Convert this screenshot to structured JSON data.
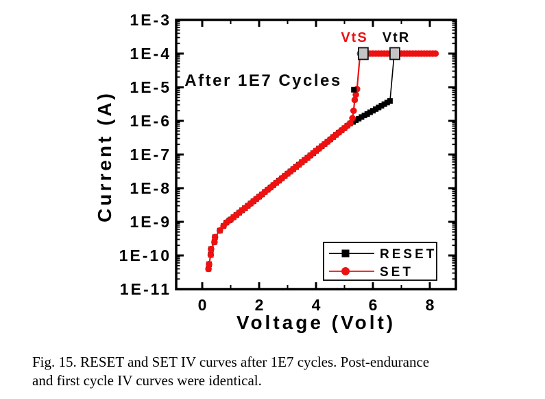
{
  "figure": {
    "x_axis": {
      "title": "Voltage (Volt)",
      "major_ticks": [
        0,
        2,
        4,
        6,
        8
      ],
      "minor_ticks": [
        1,
        3,
        5,
        7
      ],
      "range": [
        -0.92,
        8.92
      ]
    },
    "y_axis": {
      "title": "Current (A)",
      "tick_labels": [
        "1E-3",
        "1E-4",
        "1E-5",
        "1E-6",
        "1E-7",
        "1E-8",
        "1E-9",
        "1E-10",
        "1E-11"
      ],
      "tick_exponents": [
        -3,
        -4,
        -5,
        -6,
        -7,
        -8,
        -9,
        -10,
        -11
      ],
      "range_exponents": [
        -11,
        -3
      ]
    },
    "annotations": {
      "cycles_note": {
        "text": "After 1E7 Cycles",
        "color": "#0a0a0a",
        "v": -0.62,
        "i": 1.6e-05
      },
      "vts": {
        "text": "VtS",
        "color": "#ee1111",
        "v": 5.35,
        "i": 0.00032
      },
      "vtr": {
        "text": "VtR",
        "color": "#0a0a0a",
        "v": 6.82,
        "i": 0.00032
      }
    },
    "legend": {
      "items": [
        {
          "label": "RESET",
          "color": "#000000",
          "marker": "square"
        },
        {
          "label": "SET",
          "color": "#ee1111",
          "marker": "circle"
        }
      ]
    }
  },
  "chart_data": {
    "type": "line",
    "xlabel": "Voltage (Volt)",
    "ylabel": "Current (A)",
    "x_range": [
      -0.92,
      8.92
    ],
    "y_log_range": [
      -11,
      -3
    ],
    "y_scale": "log",
    "compliance_current": 0.0001,
    "series": [
      {
        "name": "RESET",
        "color": "#000000",
        "marker": "square",
        "points": [
          [
            0.22,
            4e-11
          ],
          [
            0.24,
            5.5e-11
          ],
          [
            0.3,
            1.05e-10
          ],
          [
            0.31,
            1.55e-10
          ],
          [
            0.43,
            2.5e-10
          ],
          [
            0.45,
            3.5e-10
          ],
          [
            0.62,
            5.5e-10
          ],
          [
            0.75,
            7.5e-10
          ],
          [
            0.85,
            9.5e-10
          ],
          [
            0.95,
            1.1e-09
          ],
          [
            1.0,
            1.17e-09
          ],
          [
            1.1,
            1.37e-09
          ],
          [
            1.2,
            1.6e-09
          ],
          [
            1.3,
            1.87e-09
          ],
          [
            1.4,
            2.2e-09
          ],
          [
            1.5,
            2.56e-09
          ],
          [
            1.6,
            3e-09
          ],
          [
            1.7,
            3.5e-09
          ],
          [
            1.8,
            4.1e-09
          ],
          [
            1.9,
            4.8e-09
          ],
          [
            2.0,
            5.6e-09
          ],
          [
            2.1,
            6.5e-09
          ],
          [
            2.2,
            7.7e-09
          ],
          [
            2.3,
            9e-09
          ],
          [
            2.4,
            1.05e-08
          ],
          [
            2.5,
            1.23e-08
          ],
          [
            2.6,
            1.44e-08
          ],
          [
            2.7,
            1.68e-08
          ],
          [
            2.8,
            1.96e-08
          ],
          [
            2.9,
            2.3e-08
          ],
          [
            3.0,
            2.7e-08
          ],
          [
            3.1,
            3.14e-08
          ],
          [
            3.2,
            3.67e-08
          ],
          [
            3.3,
            4.3e-08
          ],
          [
            3.4,
            5e-08
          ],
          [
            3.5,
            5.9e-08
          ],
          [
            3.6,
            6.9e-08
          ],
          [
            3.7,
            8e-08
          ],
          [
            3.8,
            9.4e-08
          ],
          [
            3.9,
            1.1e-07
          ],
          [
            4.0,
            1.29e-07
          ],
          [
            4.1,
            1.5e-07
          ],
          [
            4.2,
            1.76e-07
          ],
          [
            4.3,
            2.05e-07
          ],
          [
            4.4,
            2.4e-07
          ],
          [
            4.5,
            2.8e-07
          ],
          [
            4.6,
            3.3e-07
          ],
          [
            4.7,
            3.85e-07
          ],
          [
            4.8,
            4.5e-07
          ],
          [
            4.9,
            5.25e-07
          ],
          [
            5.0,
            6.1e-07
          ],
          [
            5.1,
            7.2e-07
          ],
          [
            5.2,
            8.4e-07
          ],
          [
            5.3,
            9.3e-07
          ],
          [
            5.4,
            1.05e-06
          ],
          [
            5.5,
            1.16e-06
          ],
          [
            5.6,
            1.3e-06
          ],
          [
            5.7,
            1.45e-06
          ],
          [
            5.8,
            1.6e-06
          ],
          [
            5.9,
            1.8e-06
          ],
          [
            6.0,
            2e-06
          ],
          [
            6.1,
            2.24e-06
          ],
          [
            6.2,
            2.5e-06
          ],
          [
            6.3,
            2.8e-06
          ],
          [
            6.4,
            3.14e-06
          ],
          [
            6.5,
            3.5e-06
          ],
          [
            6.6,
            3.9e-06
          ],
          [
            6.75,
            0.0001
          ]
        ]
      },
      {
        "name": "SET",
        "color": "#ee1111",
        "marker": "circle",
        "points": [
          [
            0.22,
            4e-11
          ],
          [
            0.24,
            5.5e-11
          ],
          [
            0.3,
            1.05e-10
          ],
          [
            0.31,
            1.55e-10
          ],
          [
            0.43,
            2.5e-10
          ],
          [
            0.45,
            3.5e-10
          ],
          [
            0.62,
            5.5e-10
          ],
          [
            0.75,
            7.5e-10
          ],
          [
            0.85,
            9.5e-10
          ],
          [
            0.95,
            1.1e-09
          ],
          [
            1.0,
            1.17e-09
          ],
          [
            1.1,
            1.37e-09
          ],
          [
            1.2,
            1.6e-09
          ],
          [
            1.3,
            1.87e-09
          ],
          [
            1.4,
            2.2e-09
          ],
          [
            1.5,
            2.56e-09
          ],
          [
            1.6,
            3e-09
          ],
          [
            1.7,
            3.5e-09
          ],
          [
            1.8,
            4.1e-09
          ],
          [
            1.9,
            4.8e-09
          ],
          [
            2.0,
            5.6e-09
          ],
          [
            2.1,
            6.5e-09
          ],
          [
            2.2,
            7.7e-09
          ],
          [
            2.3,
            9e-09
          ],
          [
            2.4,
            1.05e-08
          ],
          [
            2.5,
            1.23e-08
          ],
          [
            2.6,
            1.44e-08
          ],
          [
            2.7,
            1.68e-08
          ],
          [
            2.8,
            1.96e-08
          ],
          [
            2.9,
            2.3e-08
          ],
          [
            3.0,
            2.7e-08
          ],
          [
            3.1,
            3.14e-08
          ],
          [
            3.2,
            3.67e-08
          ],
          [
            3.3,
            4.3e-08
          ],
          [
            3.4,
            5e-08
          ],
          [
            3.5,
            5.9e-08
          ],
          [
            3.6,
            6.9e-08
          ],
          [
            3.7,
            8e-08
          ],
          [
            3.8,
            9.4e-08
          ],
          [
            3.9,
            1.1e-07
          ],
          [
            4.0,
            1.29e-07
          ],
          [
            4.1,
            1.5e-07
          ],
          [
            4.2,
            1.76e-07
          ],
          [
            4.3,
            2.05e-07
          ],
          [
            4.4,
            2.4e-07
          ],
          [
            4.5,
            2.8e-07
          ],
          [
            4.6,
            3.3e-07
          ],
          [
            4.7,
            3.85e-07
          ],
          [
            4.8,
            4.5e-07
          ],
          [
            4.9,
            5.25e-07
          ],
          [
            5.0,
            6.1e-07
          ],
          [
            5.1,
            7.2e-07
          ],
          [
            5.2,
            8.4e-07
          ],
          [
            5.28,
            1.2e-06
          ],
          [
            5.32,
            2e-06
          ],
          [
            5.36,
            4.2e-06
          ],
          [
            5.4,
            6e-06
          ],
          [
            5.44,
            8.8e-06
          ],
          [
            5.55,
            0.0001
          ],
          [
            5.6,
            0.0001
          ],
          [
            5.7,
            0.0001
          ],
          [
            5.8,
            0.0001
          ],
          [
            5.9,
            0.0001
          ],
          [
            6.0,
            0.0001
          ],
          [
            6.1,
            0.0001
          ],
          [
            6.2,
            0.0001
          ],
          [
            6.3,
            0.0001
          ],
          [
            6.4,
            0.0001
          ],
          [
            6.5,
            0.0001
          ],
          [
            6.6,
            0.0001
          ],
          [
            6.7,
            0.0001
          ],
          [
            6.8,
            0.0001
          ],
          [
            6.9,
            0.0001
          ],
          [
            7.0,
            0.0001
          ],
          [
            7.1,
            0.0001
          ],
          [
            7.2,
            0.0001
          ],
          [
            7.3,
            0.0001
          ],
          [
            7.4,
            0.0001
          ],
          [
            7.5,
            0.0001
          ],
          [
            7.6,
            0.0001
          ],
          [
            7.7,
            0.0001
          ],
          [
            7.8,
            0.0001
          ],
          [
            7.9,
            0.0001
          ],
          [
            8.0,
            0.0001
          ],
          [
            8.1,
            0.0001
          ],
          [
            8.2,
            0.0001
          ]
        ]
      }
    ],
    "threshold_markers": [
      {
        "name": "VtS",
        "v": 5.66,
        "i": 0.0001,
        "fill": "#c4c4c4",
        "border": "#111111"
      },
      {
        "name": "VtR",
        "v": 6.77,
        "i": 0.0001,
        "fill": "#c4c4c4",
        "border": "#111111"
      }
    ],
    "stray_points": [
      {
        "series": "RESET",
        "v": 5.33,
        "i": 8.4e-06
      }
    ]
  },
  "caption": {
    "line1": "Fig. 15.  RESET and SET IV curves after 1E7 cycles. Post-endurance",
    "line2": "and first cycle IV curves were identical."
  }
}
